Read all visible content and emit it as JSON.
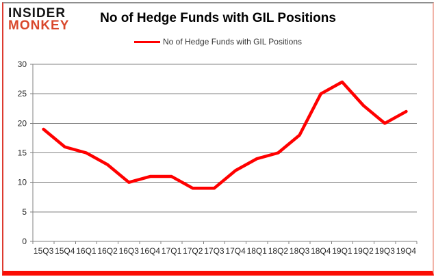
{
  "logo": {
    "line1": "INSIDER",
    "line2": "MONKEY"
  },
  "header": {
    "title": "No of Hedge Funds with GIL Positions"
  },
  "legend": {
    "label": "No of Hedge Funds with GIL Positions"
  },
  "colors": {
    "line": "#ff0000",
    "grid": "#808080",
    "axis": "#808080",
    "tick_text": "#262626",
    "logo_black": "#141414",
    "logo_red": "#d9472b",
    "frame_bottom": "#fb0d05"
  },
  "chart_data": {
    "type": "line",
    "title": "No of Hedge Funds with GIL Positions",
    "categories": [
      "15Q3",
      "15Q4",
      "16Q1",
      "16Q2",
      "16Q3",
      "16Q4",
      "17Q1",
      "17Q2",
      "17Q3",
      "17Q4",
      "18Q1",
      "18Q2",
      "18Q3",
      "18Q4",
      "19Q1",
      "19Q2",
      "19Q3",
      "19Q4"
    ],
    "series": [
      {
        "name": "No of Hedge Funds with GIL Positions",
        "values": [
          19,
          16,
          15,
          13,
          10,
          11,
          11,
          9,
          9,
          12,
          14,
          15,
          18,
          25,
          27,
          23,
          20,
          22
        ]
      }
    ],
    "xlabel": "",
    "ylabel": "",
    "ylim": [
      0,
      30
    ],
    "yticks": [
      0,
      5,
      10,
      15,
      20,
      25,
      30
    ],
    "grid": true,
    "legend_position": "top"
  }
}
